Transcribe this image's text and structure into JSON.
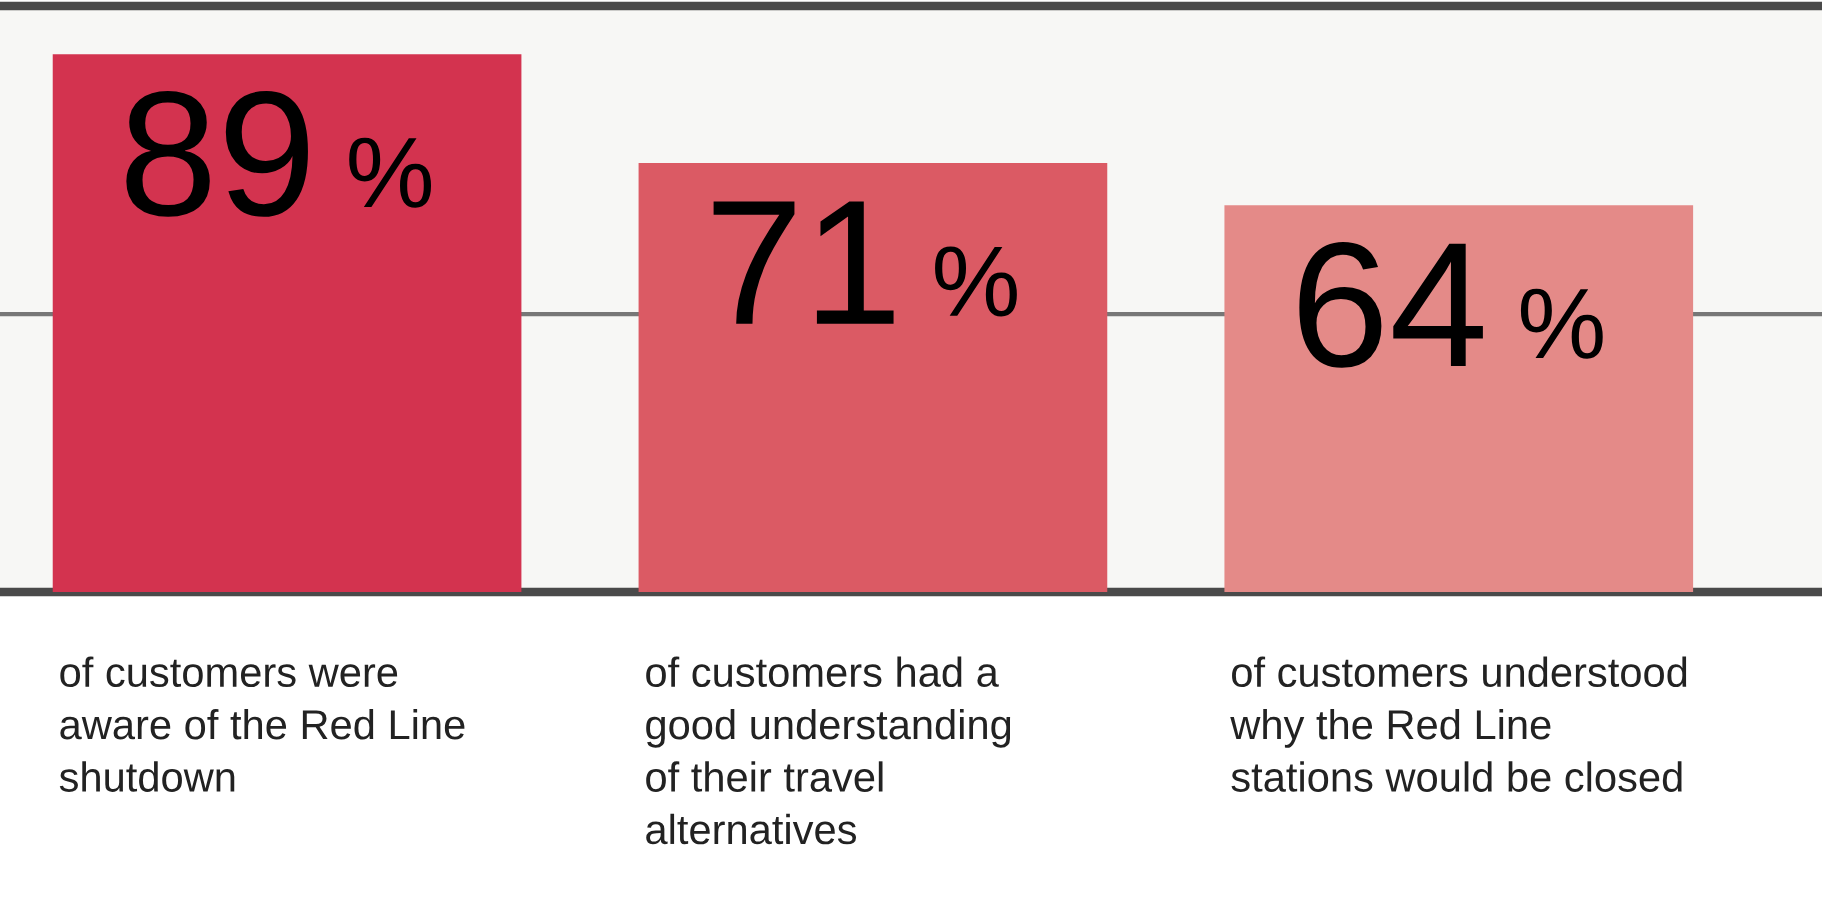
{
  "chart_data": {
    "type": "bar",
    "categories": [
      "of customers were\naware of the Red Line\nshutdown",
      "of customers had a\ngood understanding\nof their travel\nalternatives",
      "of customers understood\nwhy the Red Line\nstations would be closed"
    ],
    "values": [
      89,
      71,
      64
    ],
    "colors": [
      "#d3334f",
      "#db5a64",
      "#e48a88"
    ],
    "value_labels": [
      "89%",
      "71%",
      "64%"
    ],
    "relative": false,
    "ylim": [
      0,
      97
    ],
    "ref_lines": [
      {
        "axis": "y",
        "value": 46,
        "label": null,
        "color": "#777777"
      }
    ]
  }
}
